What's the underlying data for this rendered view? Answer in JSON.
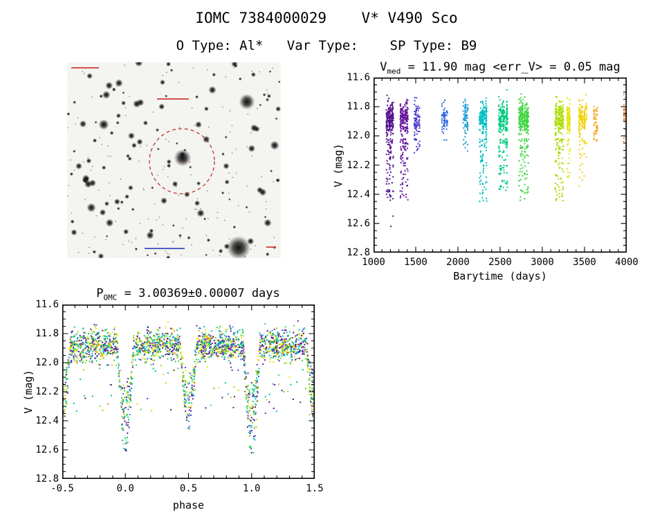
{
  "page": {
    "title": "IOMC 7384000029    V* V490 Sco",
    "subtitle": "O Type: Al*   Var Type:    SP Type: B9"
  },
  "stats": {
    "v_med_mag": 11.9,
    "err_v_mag": 0.05,
    "period_days": 3.00369,
    "period_err_days": 7e-05
  },
  "finder": {
    "background": "#f4f4f1",
    "circle_color": "#bb2222",
    "annotation_color": "#cc3333",
    "secondary_annotation_color": "#3344bb"
  },
  "chart_data": [
    {
      "id": "lightcurve",
      "type": "scatter",
      "title": {
        "prefix": "V",
        "sub": "med",
        "rest": " = 11.90 mag <err_V> = 0.05 mag"
      },
      "xlabel": "Barytime (days)",
      "ylabel": "V (mag)",
      "xlim": [
        1000,
        4000
      ],
      "ylim_top": 11.6,
      "ylim_bottom": 12.8,
      "xtick_values": [
        1000,
        1500,
        2000,
        2500,
        3000,
        3500,
        4000
      ],
      "xtick_labels": [
        "1000",
        "1500",
        "2000",
        "2500",
        "3000",
        "3500",
        "4000"
      ],
      "ytick_values": [
        11.6,
        11.8,
        12.0,
        12.2,
        12.4,
        12.6,
        12.8
      ],
      "ytick_labels": [
        "11.6",
        "11.8",
        "12.0",
        "12.2",
        "12.4",
        "12.6",
        "12.8"
      ],
      "x_minor_step": 100,
      "y_minor_step": 0.05,
      "base_mag": 11.88,
      "scatter_mag": 0.055,
      "clusters": [
        {
          "x": 1190,
          "spread": 85,
          "n": 260,
          "cols": 9,
          "color": "#55138f",
          "eclipse_frac": 0.3,
          "max_depth": 12.45
        },
        {
          "x": 1360,
          "spread": 95,
          "n": 240,
          "cols": 9,
          "color": "#68189e",
          "eclipse_frac": 0.28,
          "max_depth": 12.45
        },
        {
          "x": 1515,
          "spread": 60,
          "n": 95,
          "cols": 5,
          "color": "#4a3ad0",
          "eclipse_frac": 0.1,
          "max_depth": 12.12
        },
        {
          "x": 1845,
          "spread": 75,
          "n": 65,
          "cols": 6,
          "color": "#2f62de",
          "eclipse_frac": 0.06,
          "max_depth": 12.05
        },
        {
          "x": 2090,
          "spread": 60,
          "n": 75,
          "cols": 5,
          "color": "#1e9ad8",
          "eclipse_frac": 0.08,
          "max_depth": 12.12
        },
        {
          "x": 2300,
          "spread": 85,
          "n": 220,
          "cols": 8,
          "color": "#00bfc4",
          "eclipse_frac": 0.3,
          "max_depth": 12.46
        },
        {
          "x": 2540,
          "spread": 110,
          "n": 255,
          "cols": 9,
          "color": "#00cc7e",
          "eclipse_frac": 0.26,
          "max_depth": 12.4
        },
        {
          "x": 2780,
          "spread": 120,
          "n": 275,
          "cols": 10,
          "color": "#3ad23c",
          "eclipse_frac": 0.28,
          "max_depth": 12.46
        },
        {
          "x": 3200,
          "spread": 100,
          "n": 255,
          "cols": 9,
          "color": "#aadc00",
          "eclipse_frac": 0.28,
          "max_depth": 12.46
        },
        {
          "x": 3310,
          "spread": 50,
          "n": 110,
          "cols": 4,
          "color": "#e6e400",
          "eclipse_frac": 0.2,
          "max_depth": 12.3
        },
        {
          "x": 3480,
          "spread": 95,
          "n": 160,
          "cols": 7,
          "color": "#f2d000",
          "eclipse_frac": 0.2,
          "max_depth": 12.35
        },
        {
          "x": 3630,
          "spread": 45,
          "n": 55,
          "cols": 4,
          "color": "#f5a623",
          "eclipse_frac": 0.06,
          "max_depth": 12.05
        },
        {
          "x": 3985,
          "spread": 45,
          "n": 45,
          "cols": 3,
          "color": "#ef7f2e",
          "eclipse_frac": 0.05,
          "max_depth": 12.0
        }
      ],
      "outliers": [
        {
          "x": 1205,
          "y": 12.62,
          "color": "#55138f"
        },
        {
          "x": 1232,
          "y": 12.55,
          "color": "#55138f"
        }
      ]
    },
    {
      "id": "phase-folded",
      "type": "scatter",
      "title": {
        "prefix": "P",
        "sub": "OMC",
        "rest": " = 3.00369±0.00007 days"
      },
      "xlabel": "phase",
      "ylabel": "V (mag)",
      "xlim": [
        -0.5,
        1.5
      ],
      "ylim_top": 11.6,
      "ylim_bottom": 12.8,
      "xtick_values": [
        -0.5,
        0.0,
        0.5,
        1.0,
        1.5
      ],
      "xtick_labels": [
        "-0.5",
        "0.0",
        "0.5",
        "1.0",
        "1.5"
      ],
      "ytick_values": [
        11.6,
        11.8,
        12.0,
        12.2,
        12.4,
        12.6,
        12.8
      ],
      "ytick_labels": [
        "11.6",
        "11.8",
        "12.0",
        "12.2",
        "12.4",
        "12.6",
        "12.8"
      ],
      "x_minor_step": 0.1,
      "y_minor_step": 0.05,
      "n_points": 2400,
      "stray_frac": 0.03,
      "base_mag": 11.88,
      "scatter_mag": 0.055,
      "eclipses": {
        "primary_phases": [
          0.0,
          1.0
        ],
        "secondary_phases": [
          -0.5,
          0.5,
          1.5
        ],
        "primary_depth_mag": 0.72,
        "secondary_depth_mag": 0.56,
        "half_width_phase": 0.065
      },
      "outliers": [
        {
          "x": 0.0,
          "y": 12.6,
          "color": "#55138f"
        },
        {
          "x": 1.0,
          "y": 12.62,
          "color": "#55138f"
        }
      ]
    }
  ]
}
